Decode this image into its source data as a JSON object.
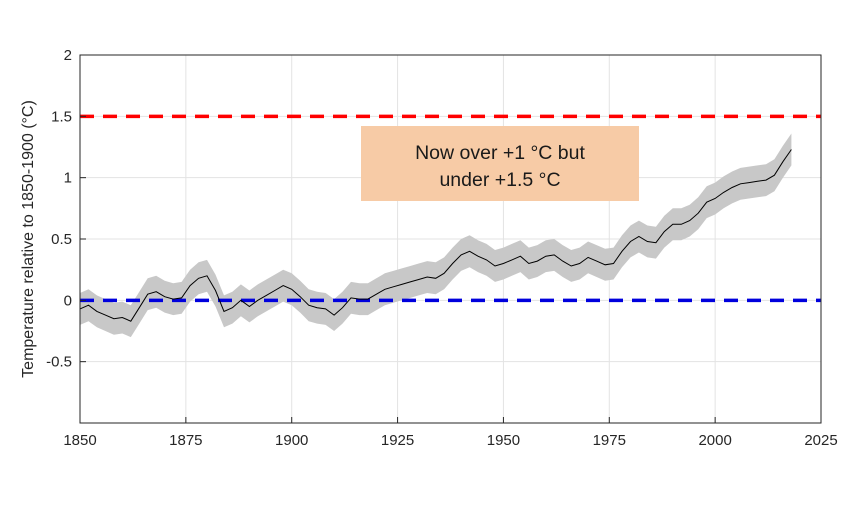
{
  "chart_data": {
    "type": "line",
    "title": "",
    "xlabel": "",
    "ylabel": "Temperature relative to 1850-1900 (°C)",
    "xlim": [
      1850,
      2025
    ],
    "ylim": [
      -1,
      2
    ],
    "x_ticks": [
      1850,
      1875,
      1900,
      1925,
      1950,
      1975,
      2000,
      2025
    ],
    "y_ticks": [
      -0.5,
      0,
      0.5,
      1,
      1.5,
      2
    ],
    "y_tick_labels": [
      "-0.5",
      "0",
      "0.5",
      "1",
      "1.5",
      "2"
    ],
    "grid": true,
    "legend": "none",
    "colors": {
      "line": "#000000",
      "band": "#c8c8c8",
      "ref_upper": "#ff0000",
      "ref_lower": "#0000dd",
      "annotation_box": "#f7cba6"
    },
    "reference_lines": [
      {
        "y": 1.5,
        "color": "#ff0000",
        "style": "dashed"
      },
      {
        "y": 0,
        "color": "#0000dd",
        "style": "dashed"
      }
    ],
    "annotation": {
      "lines": [
        "Now over +1 °C but",
        "under +1.5 °C"
      ]
    },
    "series": [
      {
        "type": "line_with_uncertainty",
        "uncertainty_halfwidth": 0.13,
        "x": [
          1850,
          1852,
          1854,
          1856,
          1858,
          1860,
          1862,
          1864,
          1866,
          1868,
          1870,
          1872,
          1874,
          1876,
          1878,
          1880,
          1882,
          1884,
          1886,
          1888,
          1890,
          1892,
          1894,
          1896,
          1898,
          1900,
          1902,
          1904,
          1906,
          1908,
          1910,
          1912,
          1914,
          1916,
          1918,
          1920,
          1922,
          1924,
          1926,
          1928,
          1930,
          1932,
          1934,
          1936,
          1938,
          1940,
          1942,
          1944,
          1946,
          1948,
          1950,
          1952,
          1954,
          1956,
          1958,
          1960,
          1962,
          1964,
          1966,
          1968,
          1970,
          1972,
          1974,
          1976,
          1978,
          1980,
          1982,
          1984,
          1986,
          1988,
          1990,
          1992,
          1994,
          1996,
          1998,
          2000,
          2002,
          2004,
          2006,
          2008,
          2010,
          2012,
          2014,
          2016,
          2018
        ],
        "y": [
          -0.07,
          -0.04,
          -0.09,
          -0.12,
          -0.15,
          -0.14,
          -0.17,
          -0.06,
          0.05,
          0.07,
          0.03,
          0.01,
          0.02,
          0.12,
          0.18,
          0.2,
          0.08,
          -0.09,
          -0.06,
          0.0,
          -0.05,
          0.0,
          0.04,
          0.08,
          0.12,
          0.09,
          0.03,
          -0.04,
          -0.06,
          -0.07,
          -0.12,
          -0.06,
          0.02,
          0.01,
          0.01,
          0.05,
          0.09,
          0.11,
          0.13,
          0.15,
          0.17,
          0.19,
          0.18,
          0.22,
          0.3,
          0.37,
          0.4,
          0.36,
          0.33,
          0.28,
          0.3,
          0.33,
          0.36,
          0.3,
          0.32,
          0.36,
          0.37,
          0.32,
          0.28,
          0.3,
          0.35,
          0.32,
          0.29,
          0.3,
          0.4,
          0.48,
          0.52,
          0.48,
          0.47,
          0.56,
          0.62,
          0.62,
          0.65,
          0.71,
          0.8,
          0.83,
          0.88,
          0.92,
          0.95,
          0.96,
          0.97,
          0.98,
          1.02,
          1.13,
          1.23
        ]
      }
    ]
  }
}
